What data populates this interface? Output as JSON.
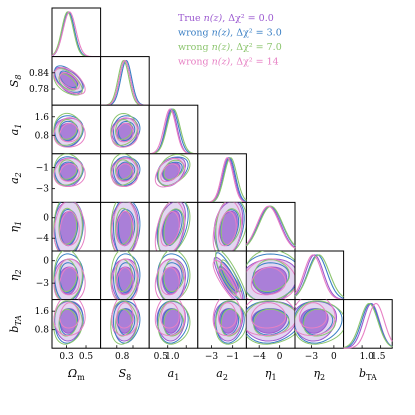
{
  "chart_data": {
    "type": "corner-plot",
    "parameters": [
      {
        "name": "omega_m",
        "label": "Ω",
        "sub": "m",
        "ticks": [
          0.3,
          0.5
        ],
        "tick_labels": [
          "0.3",
          "0.5"
        ],
        "range": [
          0.15,
          0.65
        ]
      },
      {
        "name": "s8",
        "label": "S",
        "sub": "8",
        "ticks": [
          0.78,
          0.84
        ],
        "tick_labels": [
          "0.78",
          "0.84"
        ],
        "range": [
          0.72,
          0.9
        ]
      },
      {
        "name": "a1",
        "label": "a",
        "sub": "1",
        "ticks": [
          0.8,
          1.6
        ],
        "tick_labels": [
          "0.8",
          "1.6"
        ],
        "range": [
          0.0,
          2.1
        ]
      },
      {
        "name": "a2",
        "label": "a",
        "sub": "2",
        "ticks": [
          -3,
          -1
        ],
        "tick_labels": [
          "−3",
          "−1"
        ],
        "range": [
          -4.3,
          0.3
        ]
      },
      {
        "name": "eta1",
        "label": "η",
        "sub": "1",
        "ticks": [
          -4,
          0
        ],
        "tick_labels": [
          "−4",
          "0"
        ],
        "range": [
          -6.5,
          3.0
        ]
      },
      {
        "name": "eta2",
        "label": "η",
        "sub": "2",
        "ticks": [
          -3,
          0
        ],
        "tick_labels": [
          "−3",
          "0"
        ],
        "range": [
          -5.2,
          1.3
        ]
      },
      {
        "name": "b_ta",
        "label": "b",
        "sub": "TA",
        "ticks": [
          0.8,
          1.6
        ],
        "tick_labels": [
          "0.8",
          "1.6"
        ],
        "range": [
          0.0,
          2.1
        ]
      }
    ],
    "x_tick_labels": [
      [
        "0.3",
        "0.5"
      ],
      [
        "0.8"
      ],
      [
        "0.5",
        "1.0"
      ],
      [
        "−3",
        "−1"
      ],
      [
        "−4",
        "0"
      ],
      [
        "−3",
        "0"
      ],
      [
        "1.0",
        "1.5"
      ]
    ],
    "series": [
      {
        "name": "True n(z), Δχ² = 0.0",
        "color": "#9b59d0",
        "means": [
          0.32,
          0.81,
          0.95,
          -1.4,
          -2.0,
          -2.6,
          1.2
        ],
        "sigmas": [
          0.06,
          0.02,
          0.25,
          0.55,
          2.2,
          1.2,
          0.35
        ]
      },
      {
        "name": "wrong n(z), Δχ² = 3.0",
        "color": "#3a7fc4",
        "means": [
          0.32,
          0.815,
          1.0,
          -1.3,
          -1.8,
          -2.2,
          1.15
        ],
        "sigmas": [
          0.06,
          0.02,
          0.27,
          0.55,
          2.3,
          1.3,
          0.37
        ]
      },
      {
        "name": "wrong n(z), Δχ² = 7.0",
        "color": "#8cc56e",
        "means": [
          0.31,
          0.805,
          1.05,
          -1.2,
          -1.7,
          -2.0,
          1.1
        ],
        "sigmas": [
          0.06,
          0.02,
          0.28,
          0.6,
          2.3,
          1.4,
          0.38
        ]
      },
      {
        "name": "wrong n(z), Δχ² = 14",
        "color": "#e780c4",
        "means": [
          0.33,
          0.81,
          0.9,
          -1.5,
          -2.2,
          -2.8,
          1.4
        ],
        "sigmas": [
          0.065,
          0.02,
          0.26,
          0.55,
          2.2,
          1.2,
          0.36
        ]
      }
    ],
    "legend": [
      {
        "prefix": "True ",
        "nz": "n(z)",
        "stat": ", Δχ² = 0.0",
        "color": "#9b59d0"
      },
      {
        "prefix": "wrong ",
        "nz": "n(z)",
        "stat": ", Δχ² = 3.0",
        "color": "#3a7fc4"
      },
      {
        "prefix": "wrong ",
        "nz": "n(z)",
        "stat": ", Δχ² = 7.0",
        "color": "#8cc56e"
      },
      {
        "prefix": "wrong ",
        "nz": "n(z)",
        "stat": ", Δχ² = 14",
        "color": "#e780c4"
      }
    ],
    "legend_placement": "top-right",
    "fill_color": "#9b59d0",
    "inner_fill_color": "#a77ad6"
  }
}
